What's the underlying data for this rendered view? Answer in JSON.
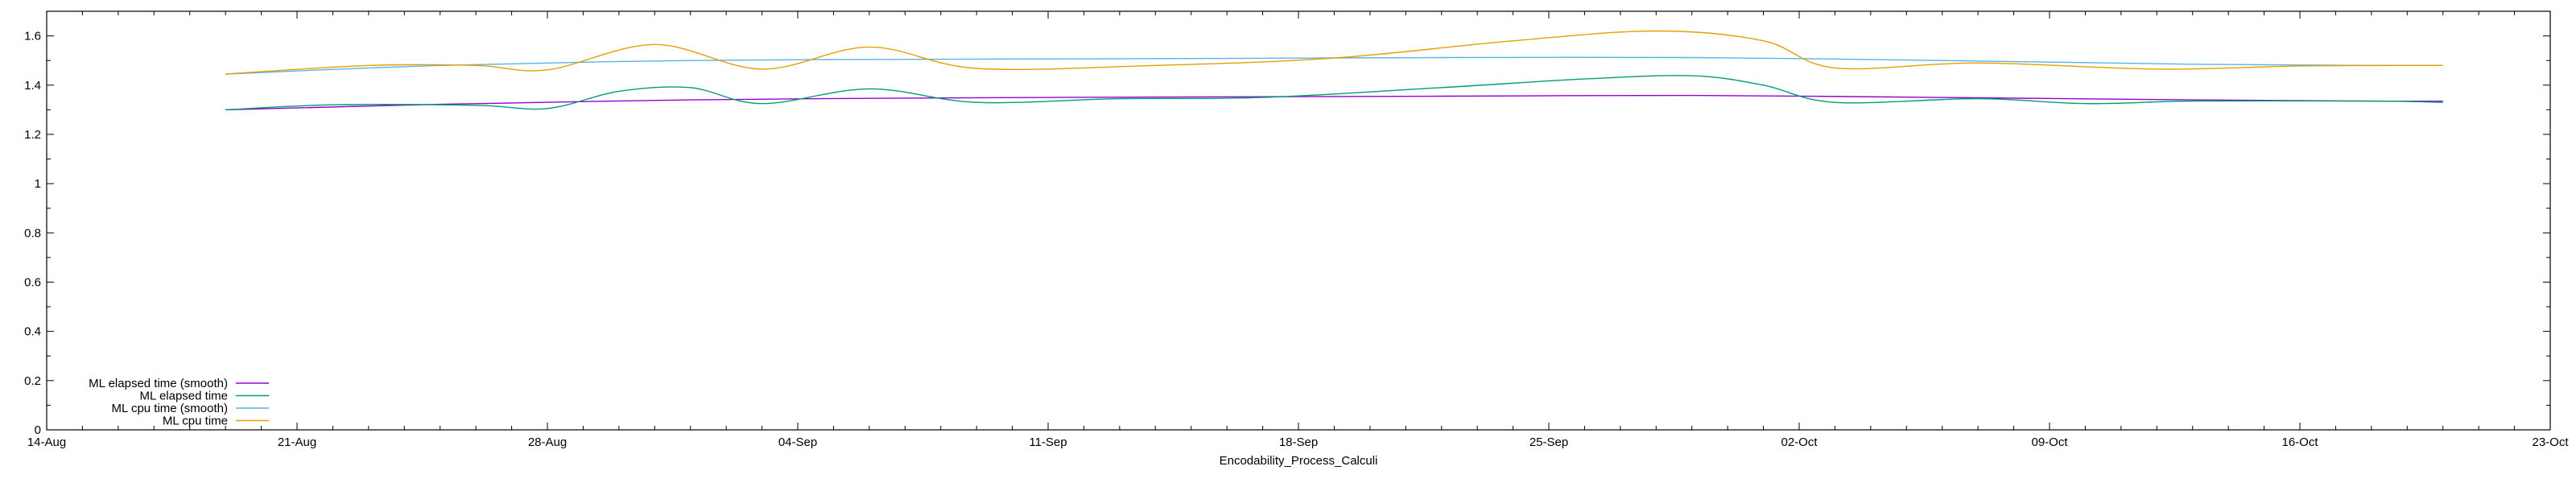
{
  "chart_data": {
    "type": "line",
    "title": "",
    "xlabel": "Encodability_Process_Calculi",
    "ylabel": "",
    "xlim": [
      "2023-08-14",
      "2023-10-23"
    ],
    "ylim": [
      0,
      1.7
    ],
    "grid": false,
    "legend_position": "bottom-left",
    "x_ticks": [
      "14-Aug",
      "21-Aug",
      "28-Aug",
      "04-Sep",
      "11-Sep",
      "18-Sep",
      "25-Sep",
      "02-Oct",
      "09-Oct",
      "16-Oct",
      "23-Oct"
    ],
    "y_ticks": [
      "0",
      "0.2",
      "0.4",
      "0.6",
      "0.8",
      "1",
      "1.2",
      "1.4",
      "1.6"
    ],
    "series": [
      {
        "name": "ML elapsed time (smooth)",
        "color": "#9400d3",
        "points": [
          [
            "2023-08-19",
            1.3
          ],
          [
            "2023-08-25",
            1.322
          ],
          [
            "2023-09-01",
            1.34
          ],
          [
            "2023-09-08",
            1.348
          ],
          [
            "2023-09-15",
            1.352
          ],
          [
            "2023-09-22",
            1.355
          ],
          [
            "2023-09-29",
            1.358
          ],
          [
            "2023-10-06",
            1.35
          ],
          [
            "2023-10-13",
            1.34
          ],
          [
            "2023-10-18",
            1.335
          ],
          [
            "2023-10-20",
            1.335
          ]
        ]
      },
      {
        "name": "ML elapsed time",
        "color": "#009e73",
        "points": [
          [
            "2023-08-19",
            1.3
          ],
          [
            "2023-08-22",
            1.32
          ],
          [
            "2023-08-26",
            1.318
          ],
          [
            "2023-08-28",
            1.305
          ],
          [
            "2023-08-30",
            1.375
          ],
          [
            "2023-09-01",
            1.39
          ],
          [
            "2023-09-03",
            1.325
          ],
          [
            "2023-09-06",
            1.385
          ],
          [
            "2023-09-09",
            1.33
          ],
          [
            "2023-09-13",
            1.345
          ],
          [
            "2023-09-17",
            1.35
          ],
          [
            "2023-09-22",
            1.39
          ],
          [
            "2023-09-26",
            1.425
          ],
          [
            "2023-09-29",
            1.438
          ],
          [
            "2023-10-01",
            1.4
          ],
          [
            "2023-10-03",
            1.33
          ],
          [
            "2023-10-07",
            1.345
          ],
          [
            "2023-10-10",
            1.325
          ],
          [
            "2023-10-13",
            1.335
          ],
          [
            "2023-10-18",
            1.335
          ],
          [
            "2023-10-20",
            1.33
          ]
        ]
      },
      {
        "name": "ML cpu time (smooth)",
        "color": "#56b4e9",
        "points": [
          [
            "2023-08-19",
            1.445
          ],
          [
            "2023-08-25",
            1.48
          ],
          [
            "2023-09-01",
            1.5
          ],
          [
            "2023-09-08",
            1.505
          ],
          [
            "2023-09-15",
            1.508
          ],
          [
            "2023-09-22",
            1.512
          ],
          [
            "2023-09-29",
            1.512
          ],
          [
            "2023-10-06",
            1.5
          ],
          [
            "2023-10-13",
            1.485
          ],
          [
            "2023-10-18",
            1.48
          ],
          [
            "2023-10-20",
            1.48
          ]
        ]
      },
      {
        "name": "ML cpu time",
        "color": "#e69f00",
        "points": [
          [
            "2023-08-19",
            1.445
          ],
          [
            "2023-08-23",
            1.48
          ],
          [
            "2023-08-26",
            1.48
          ],
          [
            "2023-08-28",
            1.462
          ],
          [
            "2023-08-31",
            1.565
          ],
          [
            "2023-09-03",
            1.465
          ],
          [
            "2023-09-06",
            1.555
          ],
          [
            "2023-09-09",
            1.468
          ],
          [
            "2023-09-14",
            1.48
          ],
          [
            "2023-09-19",
            1.51
          ],
          [
            "2023-09-24",
            1.58
          ],
          [
            "2023-09-28",
            1.62
          ],
          [
            "2023-10-01",
            1.58
          ],
          [
            "2023-10-03",
            1.47
          ],
          [
            "2023-10-07",
            1.49
          ],
          [
            "2023-10-12",
            1.465
          ],
          [
            "2023-10-16",
            1.478
          ],
          [
            "2023-10-20",
            1.48
          ]
        ]
      }
    ]
  }
}
